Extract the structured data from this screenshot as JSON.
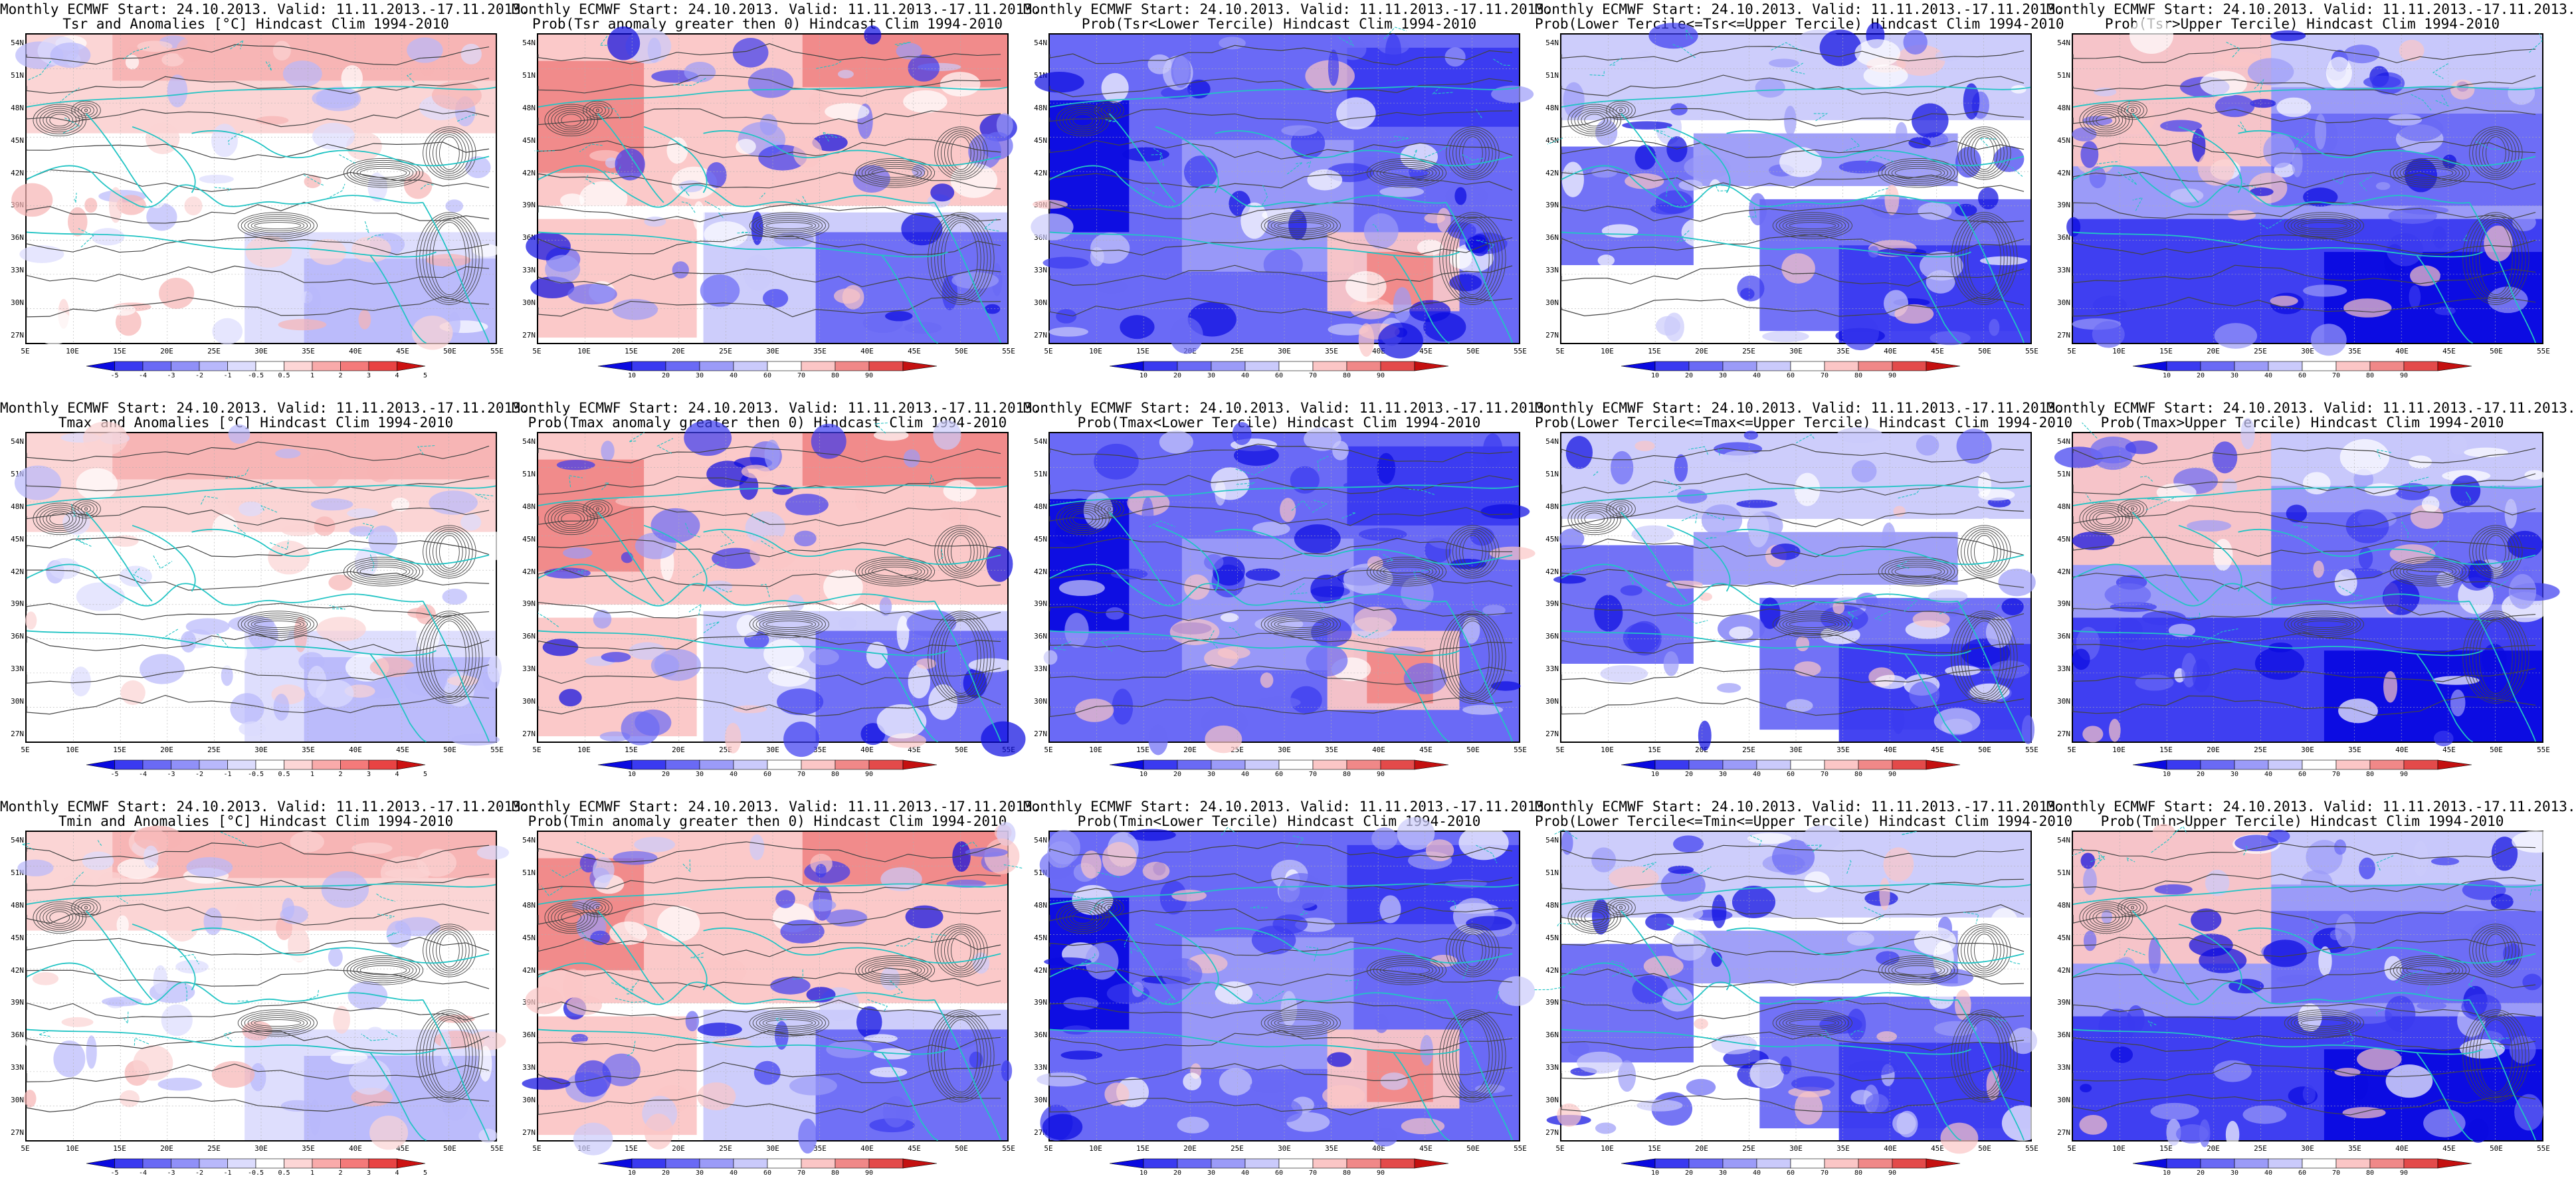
{
  "panels": [
    {
      "title1": "Monthly ECMWF Start: 24.10.2013. Valid: 11.11.2013.-17.11.2013.",
      "title2": "Tsr and Anomalies [°C] Hindcast Clim 1994-2010",
      "type": "anom",
      "field": "Tsr"
    },
    {
      "title1": "Monthly ECMWF Start: 24.10.2013. Valid: 11.11.2013.-17.11.2013.",
      "title2": "Prob(Tsr anomaly greater then 0) Hindcast Clim 1994-2010",
      "type": "prob_pos",
      "field": "Tsr"
    },
    {
      "title1": "Monthly ECMWF Start: 24.10.2013. Valid: 11.11.2013.-17.11.2013.",
      "title2": "Prob(Tsr<Lower Tercile) Hindcast Clim 1994-2010",
      "type": "prob_lower",
      "field": "Tsr"
    },
    {
      "title1": "Monthly ECMWF Start: 24.10.2013. Valid: 11.11.2013.-17.11.2013.",
      "title2": "Prob(Lower Tercile<=Tsr<=Upper Tercile) Hindcast Clim 1994-2010",
      "type": "prob_middle",
      "field": "Tsr"
    },
    {
      "title1": "Monthly ECMWF Start: 24.10.2013. Valid: 11.11.2013.-17.11.2013.",
      "title2": "Prob(Tsr>Upper Tercile) Hindcast Clim 1994-2010",
      "type": "prob_upper",
      "field": "Tsr"
    },
    {
      "title1": "Monthly ECMWF Start: 24.10.2013. Valid: 11.11.2013.-17.11.2013.",
      "title2": "Tmax and Anomalies [°C] Hindcast Clim 1994-2010",
      "type": "anom",
      "field": "Tmax"
    },
    {
      "title1": "Monthly ECMWF Start: 24.10.2013. Valid: 11.11.2013.-17.11.2013.",
      "title2": "Prob(Tmax anomaly greater then 0) Hindcast Clim 1994-2010",
      "type": "prob_pos",
      "field": "Tmax"
    },
    {
      "title1": "Monthly ECMWF Start: 24.10.2013. Valid: 11.11.2013.-17.11.2013.",
      "title2": "Prob(Tmax<Lower Tercile) Hindcast Clim 1994-2010",
      "type": "prob_lower",
      "field": "Tmax"
    },
    {
      "title1": "Monthly ECMWF Start: 24.10.2013. Valid: 11.11.2013.-17.11.2013.",
      "title2": "Prob(Lower Tercile<=Tmax<=Upper Tercile) Hindcast Clim 1994-2010",
      "type": "prob_middle",
      "field": "Tmax"
    },
    {
      "title1": "Monthly ECMWF Start: 24.10.2013. Valid: 11.11.2013.-17.11.2013.",
      "title2": "Prob(Tmax>Upper Tercile) Hindcast Clim 1994-2010",
      "type": "prob_upper",
      "field": "Tmax"
    },
    {
      "title1": "Monthly ECMWF Start: 24.10.2013. Valid: 11.11.2013.-17.11.2013.",
      "title2": "Tmin and Anomalies [°C] Hindcast Clim 1994-2010",
      "type": "anom",
      "field": "Tmin"
    },
    {
      "title1": "Monthly ECMWF Start: 24.10.2013. Valid: 11.11.2013.-17.11.2013.",
      "title2": "Prob(Tmin anomaly greater then 0) Hindcast Clim 1994-2010",
      "type": "prob_pos",
      "field": "Tmin"
    },
    {
      "title1": "Monthly ECMWF Start: 24.10.2013. Valid: 11.11.2013.-17.11.2013.",
      "title2": "Prob(Tmin<Lower Tercile) Hindcast Clim 1994-2010",
      "type": "prob_lower",
      "field": "Tmin"
    },
    {
      "title1": "Monthly ECMWF Start: 24.10.2013. Valid: 11.11.2013.-17.11.2013.",
      "title2": "Prob(Lower Tercile<=Tmin<=Upper Tercile) Hindcast Clim 1994-2010",
      "type": "prob_middle",
      "field": "Tmin"
    },
    {
      "title1": "Monthly ECMWF Start: 24.10.2013. Valid: 11.11.2013.-17.11.2013.",
      "title2": "Prob(Tmin>Upper Tercile) Hindcast Clim 1994-2010",
      "type": "prob_upper",
      "field": "Tmin"
    }
  ],
  "lat_labels": [
    "54N",
    "51N",
    "48N",
    "45N",
    "42N",
    "39N",
    "36N",
    "33N",
    "30N",
    "27N"
  ],
  "lon_labels": [
    "5E",
    "10E",
    "15E",
    "20E",
    "25E",
    "30E",
    "35E",
    "40E",
    "45E",
    "50E",
    "55E"
  ],
  "colorbars": {
    "anom": {
      "labels": [
        "-5",
        "-4",
        "-3",
        "-2",
        "-1",
        "-0.5",
        "0.5",
        "1",
        "2",
        "3",
        "4",
        "5"
      ],
      "colors": [
        "#0a0ae0",
        "#3a3af0",
        "#6a6af5",
        "#9090f8",
        "#b8b8fb",
        "#dcdcfd",
        "#ffffff",
        "#fdd6d6",
        "#f9aaaa",
        "#f47a7a",
        "#e84343",
        "#cc1111"
      ]
    },
    "prob": {
      "labels": [
        "10",
        "20",
        "30",
        "40",
        "60",
        "70",
        "80",
        "90"
      ],
      "colors": [
        "#0a0ae0",
        "#3a3af0",
        "#6a6af5",
        "#9b9bf8",
        "#cacafb",
        "#ffffff",
        "#fbc6c6",
        "#f08888",
        "#e34a4a",
        "#c41010"
      ]
    }
  },
  "colors": {
    "coast": "#22c4c4",
    "contour": "#444444",
    "frame": "#000000"
  }
}
